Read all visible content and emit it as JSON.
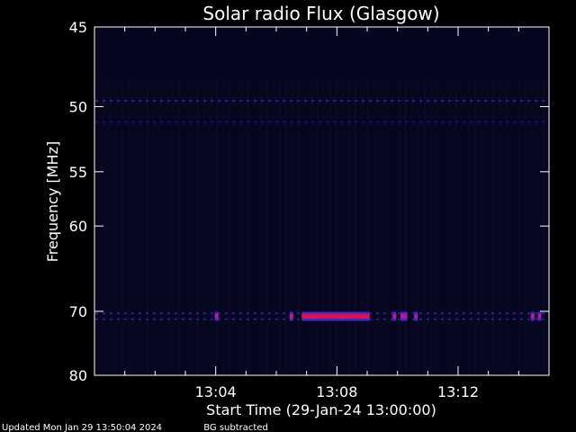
{
  "chart_data": {
    "type": "heatmap",
    "title": "Solar radio Flux (Glasgow)",
    "xlabel": "Start Time (29-Jan-24 13:00:00)",
    "ylabel": "Frequency [MHz]",
    "x_unit": "minutes after 13:00",
    "xlim": [
      0,
      15
    ],
    "y_ticks": [
      {
        "value": 45,
        "label": "45"
      },
      {
        "value": 50,
        "label": "50"
      },
      {
        "value": 55,
        "label": "55"
      },
      {
        "value": 60,
        "label": "60"
      },
      {
        "value": 70,
        "label": "70"
      },
      {
        "value": 80,
        "label": "80"
      }
    ],
    "x_ticks": [
      {
        "value": 4,
        "label": "13:04"
      },
      {
        "value": 8,
        "label": "13:08"
      },
      {
        "value": 12,
        "label": "13:12"
      }
    ],
    "grid": false,
    "background_color": "#06061e",
    "emission_features": [
      {
        "freq_mhz": 70.7,
        "t_start": 3.97,
        "t_end": 4.09,
        "color": "#c0188c"
      },
      {
        "freq_mhz": 70.7,
        "t_start": 6.44,
        "t_end": 6.56,
        "color": "#c0188c"
      },
      {
        "freq_mhz": 70.7,
        "t_start": 6.84,
        "t_end": 9.08,
        "color": "#e0104a"
      },
      {
        "freq_mhz": 70.7,
        "t_start": 9.84,
        "t_end": 9.96,
        "color": "#c0188c"
      },
      {
        "freq_mhz": 70.7,
        "t_start": 10.1,
        "t_end": 10.22,
        "color": "#c0188c"
      },
      {
        "freq_mhz": 70.7,
        "t_start": 10.2,
        "t_end": 10.32,
        "color": "#c0188c"
      },
      {
        "freq_mhz": 70.7,
        "t_start": 10.55,
        "t_end": 10.67,
        "color": "#a01ca8"
      },
      {
        "freq_mhz": 70.7,
        "t_start": 14.4,
        "t_end": 14.52,
        "color": "#c0188c"
      },
      {
        "freq_mhz": 70.7,
        "t_start": 14.63,
        "t_end": 14.75,
        "color": "#c0188c"
      }
    ],
    "band_lines": [
      {
        "freq_mhz": 49.6,
        "color": "#2a2ab4"
      },
      {
        "freq_mhz": 51.1,
        "color": "#14148c"
      },
      {
        "freq_mhz": 70.3,
        "color": "#2828b4"
      },
      {
        "freq_mhz": 71.1,
        "color": "#2828b4"
      }
    ]
  },
  "footer": {
    "updated": "Updated Mon Jan 29 13:50:04 2024",
    "note": "BG subtracted"
  }
}
